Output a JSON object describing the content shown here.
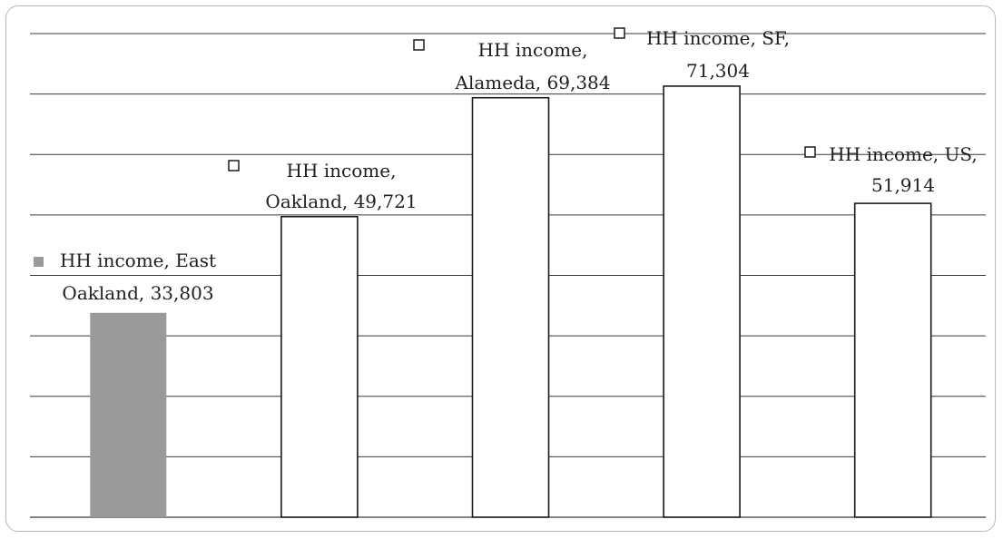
{
  "chart_data": {
    "type": "bar",
    "categories": [
      "HH income, East Oakland",
      "HH income, Oakland",
      "HH income, Alameda",
      "HH income, SF",
      "HH income, US"
    ],
    "values": [
      33803,
      49721,
      69384,
      71304,
      51914
    ],
    "data_labels": [
      [
        "HH income, East",
        "Oakland,  33,803"
      ],
      [
        "HH income,",
        "Oakland, 49,721"
      ],
      [
        "HH income,",
        "Alameda, 69,384"
      ],
      [
        "HH income, SF,",
        "71,304"
      ],
      [
        "HH income, US,",
        "51,914"
      ]
    ],
    "title": "",
    "xlabel": "",
    "ylabel": "",
    "ylim": [
      0,
      80000
    ],
    "gridlines": true,
    "axis_labels_visible": false,
    "colors": {
      "highlight_fill": "#9a9a9a",
      "default_fill": "#ffffff",
      "bar_stroke": "#1a1a1a",
      "grid": "#3a3a3a",
      "frame": "#b9b9b9"
    }
  }
}
